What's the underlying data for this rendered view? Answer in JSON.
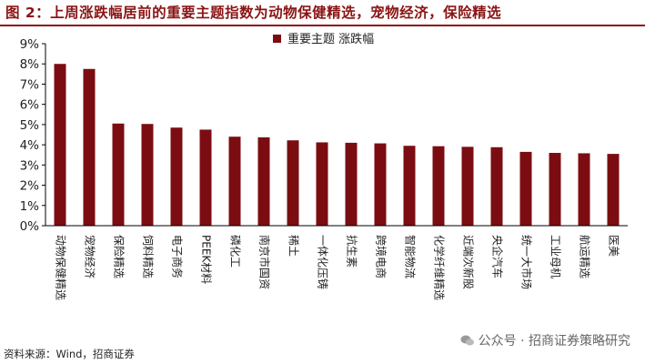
{
  "header": {
    "title": "图 2：上周涨跌幅居前的重要主题指数为动物保健精选，宠物经济，保险精选"
  },
  "footer": {
    "source": "资料来源：Wind，招商证券",
    "watermark": "公众号 · 招商证券策略研究"
  },
  "colors": {
    "bar": "#7b0d12",
    "title": "#8b1414",
    "axis": "#000000"
  },
  "icons": {
    "watermark_icon": "wechat-icon"
  },
  "chart_data": {
    "type": "bar",
    "title": "",
    "xlabel": "",
    "ylabel": "",
    "ylim": [
      0,
      9
    ],
    "yticks": [
      "0%",
      "1%",
      "2%",
      "3%",
      "4%",
      "5%",
      "6%",
      "7%",
      "8%",
      "9%"
    ],
    "grid": false,
    "legend_position": "top-center",
    "categories": [
      "动物保健精选",
      "宠物经济",
      "保险精选",
      "饲料精选",
      "电子商务",
      "PEEK材料",
      "磷化工",
      "南京市国资",
      "稀土",
      "一体化压铸",
      "抗生素",
      "跨境电商",
      "智能物流",
      "化学纤维精选",
      "近端次新股",
      "央企汽车",
      "统一大市场",
      "工业母机",
      "航运精选",
      "医美"
    ],
    "series": [
      {
        "name": "重要主题 涨跌幅",
        "unit": "%",
        "values": [
          8.0,
          7.75,
          5.05,
          5.03,
          4.85,
          4.75,
          4.4,
          4.37,
          4.22,
          4.12,
          4.1,
          4.07,
          3.95,
          3.93,
          3.9,
          3.88,
          3.65,
          3.6,
          3.58,
          3.55
        ]
      }
    ]
  }
}
